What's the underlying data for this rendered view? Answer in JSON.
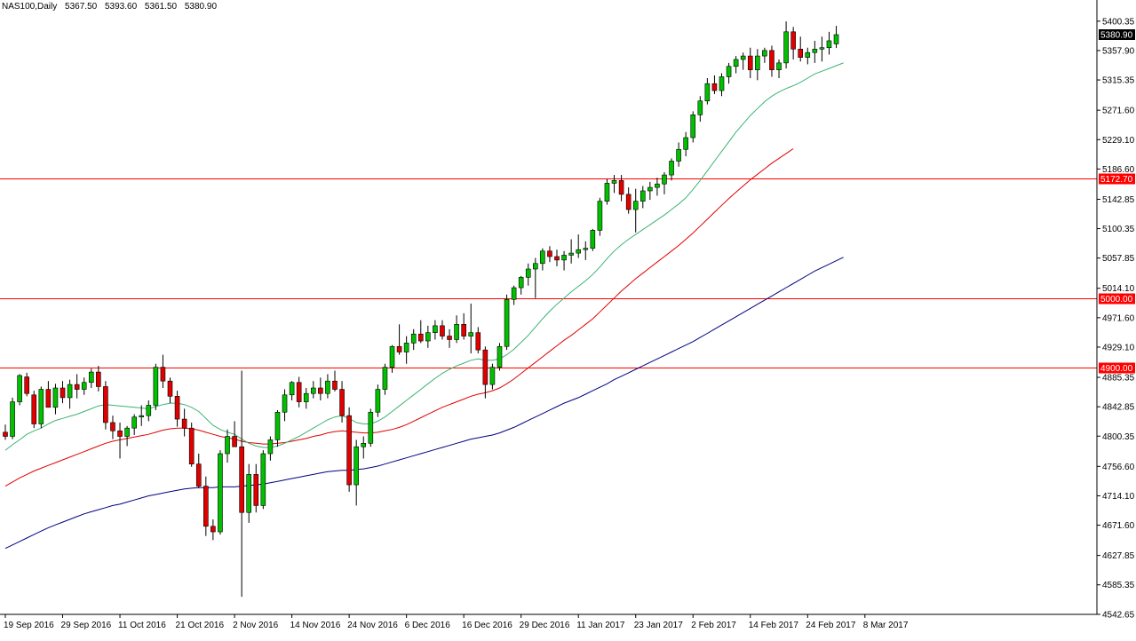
{
  "header": {
    "symbol": "NAS100,Daily",
    "open": "5367.50",
    "high": "5393.60",
    "low": "5361.50",
    "close": "5380.90"
  },
  "chart_data": {
    "type": "candlestick",
    "ylim": [
      4542.65,
      5413.0
    ],
    "y_ticks": [
      "5400.35",
      "5357.90",
      "5315.35",
      "5271.60",
      "5229.10",
      "5186.60",
      "5142.85",
      "5100.35",
      "5057.85",
      "5014.10",
      "4971.60",
      "4929.10",
      "4885.35",
      "4842.85",
      "4800.35",
      "4756.60",
      "4714.10",
      "4671.60",
      "4627.85",
      "4585.35",
      "4542.65"
    ],
    "x_labels": [
      {
        "label": "19 Sep 2016",
        "index": 0
      },
      {
        "label": "29 Sep 2016",
        "index": 8
      },
      {
        "label": "11 Oct 2016",
        "index": 16
      },
      {
        "label": "21 Oct 2016",
        "index": 24
      },
      {
        "label": "2 Nov 2016",
        "index": 32
      },
      {
        "label": "14 Nov 2016",
        "index": 40
      },
      {
        "label": "24 Nov 2016",
        "index": 48
      },
      {
        "label": "6 Dec 2016",
        "index": 56
      },
      {
        "label": "16 Dec 2016",
        "index": 64
      },
      {
        "label": "29 Dec 2016",
        "index": 72
      },
      {
        "label": "11 Jan 2017",
        "index": 80
      },
      {
        "label": "23 Jan 2017",
        "index": 88
      },
      {
        "label": "2 Feb 2017",
        "index": 96
      },
      {
        "label": "14 Feb 2017",
        "index": 104
      },
      {
        "label": "24 Feb 2017",
        "index": 112
      },
      {
        "label": "8 Mar 2017",
        "index": 120
      }
    ],
    "levels": [
      {
        "value": 5172.7,
        "label": "5172.70",
        "color": "#ff0000"
      },
      {
        "value": 5000.0,
        "label": "5000.00",
        "color": "#ff0000"
      },
      {
        "value": 4900.0,
        "label": "4900.00",
        "color": "#ff0000"
      }
    ],
    "current_price": {
      "value": 5380.9,
      "label": "5380.90"
    },
    "colors": {
      "up": "#00c000",
      "down": "#e00000",
      "wick": "#000000",
      "ma_fast": "#3cb371",
      "ma_mid": "#e00000",
      "ma_slow": "#000080",
      "grid": "#000000"
    },
    "candles": [
      [
        4806,
        4817,
        4795,
        4800
      ],
      [
        4800,
        4856,
        4796,
        4850
      ],
      [
        4850,
        4890,
        4845,
        4888
      ],
      [
        4886,
        4892,
        4858,
        4862
      ],
      [
        4860,
        4866,
        4812,
        4818
      ],
      [
        4818,
        4872,
        4812,
        4868
      ],
      [
        4868,
        4880,
        4842,
        4842
      ],
      [
        4842,
        4876,
        4832,
        4870
      ],
      [
        4870,
        4880,
        4848,
        4856
      ],
      [
        4856,
        4882,
        4840,
        4875
      ],
      [
        4875,
        4890,
        4855,
        4868
      ],
      [
        4868,
        4885,
        4860,
        4878
      ],
      [
        4878,
        4898,
        4870,
        4893
      ],
      [
        4893,
        4902,
        4865,
        4872
      ],
      [
        4872,
        4880,
        4810,
        4820
      ],
      [
        4820,
        4830,
        4796,
        4808
      ],
      [
        4808,
        4820,
        4768,
        4800
      ],
      [
        4800,
        4815,
        4786,
        4812
      ],
      [
        4812,
        4832,
        4802,
        4828
      ],
      [
        4828,
        4845,
        4815,
        4830
      ],
      [
        4830,
        4852,
        4822,
        4845
      ],
      [
        4845,
        4905,
        4838,
        4900
      ],
      [
        4900,
        4918,
        4870,
        4880
      ],
      [
        4880,
        4885,
        4848,
        4858
      ],
      [
        4858,
        4866,
        4814,
        4825
      ],
      [
        4825,
        4840,
        4800,
        4812
      ],
      [
        4812,
        4820,
        4756,
        4760
      ],
      [
        4760,
        4775,
        4725,
        4728
      ],
      [
        4728,
        4742,
        4656,
        4670
      ],
      [
        4670,
        4680,
        4650,
        4662
      ],
      [
        4662,
        4780,
        4658,
        4775
      ],
      [
        4775,
        4810,
        4762,
        4800
      ],
      [
        4800,
        4822,
        4790,
        4785
      ],
      [
        4785,
        4895,
        4568,
        4690
      ],
      [
        4690,
        4760,
        4675,
        4745
      ],
      [
        4745,
        4760,
        4690,
        4700
      ],
      [
        4700,
        4780,
        4695,
        4775
      ],
      [
        4775,
        4800,
        4765,
        4795
      ],
      [
        4795,
        4838,
        4785,
        4835
      ],
      [
        4835,
        4868,
        4822,
        4860
      ],
      [
        4860,
        4880,
        4852,
        4878
      ],
      [
        4878,
        4886,
        4842,
        4850
      ],
      [
        4850,
        4870,
        4840,
        4862
      ],
      [
        4862,
        4880,
        4855,
        4870
      ],
      [
        4870,
        4885,
        4852,
        4862
      ],
      [
        4862,
        4890,
        4855,
        4880
      ],
      [
        4880,
        4895,
        4865,
        4868
      ],
      [
        4868,
        4880,
        4820,
        4830
      ],
      [
        4830,
        4842,
        4720,
        4730
      ],
      [
        4730,
        4795,
        4700,
        4785
      ],
      [
        4785,
        4800,
        4768,
        4790
      ],
      [
        4790,
        4840,
        4785,
        4835
      ],
      [
        4835,
        4875,
        4828,
        4868
      ],
      [
        4868,
        4905,
        4860,
        4900
      ],
      [
        4900,
        4932,
        4892,
        4930
      ],
      [
        4930,
        4962,
        4918,
        4922
      ],
      [
        4922,
        4945,
        4905,
        4935
      ],
      [
        4935,
        4955,
        4925,
        4948
      ],
      [
        4948,
        4968,
        4935,
        4938
      ],
      [
        4938,
        4960,
        4928,
        4950
      ],
      [
        4950,
        4968,
        4940,
        4960
      ],
      [
        4960,
        4968,
        4940,
        4945
      ],
      [
        4945,
        4955,
        4928,
        4940
      ],
      [
        4940,
        4975,
        4935,
        4962
      ],
      [
        4962,
        4978,
        4940,
        4945
      ],
      [
        4945,
        4992,
        4920,
        4950
      ],
      [
        4950,
        4958,
        4920,
        4925
      ],
      [
        4925,
        4930,
        4855,
        4875
      ],
      [
        4875,
        4905,
        4868,
        4900
      ],
      [
        4900,
        4935,
        4895,
        4930
      ],
      [
        4930,
        5005,
        4925,
        4998
      ],
      [
        4998,
        5018,
        4990,
        5015
      ],
      [
        5015,
        5032,
        5005,
        5030
      ],
      [
        5030,
        5050,
        5018,
        5042
      ],
      [
        5042,
        5058,
        5000,
        5050
      ],
      [
        5050,
        5072,
        5040,
        5068
      ],
      [
        5068,
        5075,
        5052,
        5060
      ],
      [
        5060,
        5070,
        5046,
        5055
      ],
      [
        5055,
        5068,
        5040,
        5062
      ],
      [
        5062,
        5085,
        5050,
        5065
      ],
      [
        5065,
        5092,
        5058,
        5070
      ],
      [
        5070,
        5082,
        5055,
        5072
      ],
      [
        5072,
        5100,
        5068,
        5098
      ],
      [
        5098,
        5145,
        5090,
        5140
      ],
      [
        5140,
        5172,
        5135,
        5166
      ],
      [
        5166,
        5178,
        5152,
        5170
      ],
      [
        5170,
        5178,
        5140,
        5150
      ],
      [
        5150,
        5160,
        5122,
        5128
      ],
      [
        5128,
        5158,
        5095,
        5140
      ],
      [
        5140,
        5162,
        5130,
        5155
      ],
      [
        5155,
        5168,
        5142,
        5160
      ],
      [
        5160,
        5174,
        5148,
        5165
      ],
      [
        5165,
        5182,
        5150,
        5178
      ],
      [
        5178,
        5202,
        5170,
        5198
      ],
      [
        5198,
        5225,
        5190,
        5215
      ],
      [
        5215,
        5240,
        5205,
        5232
      ],
      [
        5232,
        5270,
        5225,
        5265
      ],
      [
        5265,
        5292,
        5255,
        5285
      ],
      [
        5285,
        5318,
        5280,
        5310
      ],
      [
        5310,
        5322,
        5295,
        5300
      ],
      [
        5300,
        5325,
        5292,
        5320
      ],
      [
        5320,
        5340,
        5310,
        5335
      ],
      [
        5335,
        5350,
        5325,
        5345
      ],
      [
        5345,
        5355,
        5330,
        5350
      ],
      [
        5350,
        5362,
        5318,
        5330
      ],
      [
        5330,
        5360,
        5315,
        5350
      ],
      [
        5350,
        5362,
        5340,
        5358
      ],
      [
        5358,
        5365,
        5320,
        5330
      ],
      [
        5330,
        5345,
        5318,
        5340
      ],
      [
        5340,
        5400,
        5332,
        5385
      ],
      [
        5385,
        5392,
        5345,
        5360
      ],
      [
        5360,
        5378,
        5342,
        5348
      ],
      [
        5348,
        5362,
        5338,
        5355
      ],
      [
        5355,
        5372,
        5340,
        5360
      ],
      [
        5360,
        5378,
        5342,
        5362
      ],
      [
        5362,
        5385,
        5352,
        5372
      ],
      [
        5367.5,
        5393.6,
        5361.5,
        5380.9
      ]
    ],
    "ma_fast": [
      4780,
      4788,
      4795,
      4803,
      4808,
      4812,
      4818,
      4823,
      4826,
      4829,
      4832,
      4836,
      4840,
      4844,
      4846,
      4845,
      4844,
      4843,
      4842,
      4841,
      4840,
      4843,
      4846,
      4848,
      4848,
      4846,
      4842,
      4836,
      4826,
      4816,
      4810,
      4806,
      4803,
      4796,
      4790,
      4786,
      4784,
      4784,
      4786,
      4790,
      4795,
      4800,
      4806,
      4812,
      4818,
      4824,
      4828,
      4830,
      4826,
      4820,
      4818,
      4818,
      4822,
      4828,
      4836,
      4844,
      4852,
      4860,
      4868,
      4876,
      4884,
      4891,
      4897,
      4902,
      4906,
      4910,
      4912,
      4910,
      4910,
      4912,
      4918,
      4926,
      4936,
      4946,
      4958,
      4970,
      4981,
      4991,
      5000,
      5009,
      5017,
      5025,
      5034,
      5045,
      5057,
      5068,
      5077,
      5085,
      5092,
      5099,
      5106,
      5113,
      5120,
      5128,
      5136,
      5145,
      5157,
      5170,
      5184,
      5198,
      5212,
      5226,
      5240,
      5252,
      5264,
      5274,
      5284,
      5292,
      5298,
      5303,
      5307,
      5312,
      5318,
      5324,
      5328,
      5332,
      5336,
      5340
    ],
    "ma_mid": [
      4728,
      4734,
      4740,
      4745,
      4750,
      4754,
      4758,
      4762,
      4766,
      4770,
      4774,
      4778,
      4782,
      4786,
      4790,
      4793,
      4795,
      4797,
      4799,
      4801,
      4803,
      4806,
      4809,
      4811,
      4812,
      4812,
      4811,
      4809,
      4806,
      4803,
      4800,
      4798,
      4796,
      4793,
      4791,
      4790,
      4789,
      4789,
      4790,
      4791,
      4793,
      4795,
      4797,
      4800,
      4802,
      4805,
      4807,
      4808,
      4807,
      4806,
      4805,
      4805,
      4806,
      4808,
      4810,
      4813,
      4817,
      4822,
      4827,
      4832,
      4837,
      4842,
      4846,
      4850,
      4854,
      4858,
      4861,
      4863,
      4866,
      4870,
      4876,
      4883,
      4891,
      4899,
      4907,
      4915,
      4923,
      4931,
      4939,
      4946,
      4954,
      4962,
      4970,
      4980,
      4990,
      5000,
      5010,
      5019,
      5028,
      5036,
      5044,
      5052,
      5060,
      5068,
      5076,
      5085,
      5094,
      5104,
      5114,
      5124,
      5134,
      5144,
      5153,
      5162,
      5171,
      5179,
      5187,
      5195,
      5202,
      5209,
      5216
    ],
    "ma_slow": [
      4638,
      4643,
      4648,
      4653,
      4658,
      4663,
      4668,
      4672,
      4676,
      4680,
      4684,
      4688,
      4691,
      4694,
      4697,
      4700,
      4702,
      4705,
      4708,
      4711,
      4714,
      4716,
      4718,
      4720,
      4722,
      4724,
      4725,
      4726,
      4726,
      4726,
      4727,
      4727,
      4727,
      4728,
      4729,
      4730,
      4731,
      4733,
      4735,
      4737,
      4739,
      4741,
      4743,
      4745,
      4747,
      4749,
      4750,
      4751,
      4751,
      4752,
      4753,
      4755,
      4757,
      4760,
      4763,
      4766,
      4769,
      4772,
      4775,
      4778,
      4781,
      4784,
      4787,
      4790,
      4793,
      4796,
      4798,
      4800,
      4802,
      4805,
      4809,
      4813,
      4818,
      4823,
      4828,
      4833,
      4838,
      4843,
      4848,
      4852,
      4856,
      4861,
      4866,
      4871,
      4876,
      4882,
      4887,
      4892,
      4897,
      4902,
      4907,
      4912,
      4917,
      4922,
      4927,
      4932,
      4937,
      4943,
      4949,
      4955,
      4961,
      4967,
      4973,
      4979,
      4985,
      4991,
      4997,
      5003,
      5009,
      5015,
      5021,
      5027,
      5033,
      5039,
      5044,
      5049,
      5054,
      5059
    ]
  }
}
